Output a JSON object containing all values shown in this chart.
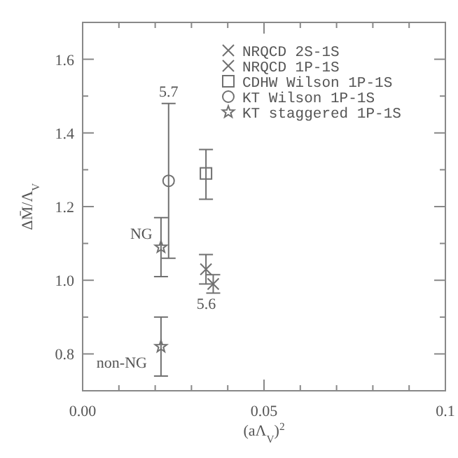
{
  "chart_data": {
    "type": "scatter",
    "xlabel": "(aΛ$_{V}$)$^{2}$",
    "ylabel": "ΔM̄/Λ$_{V}$",
    "xlim": [
      0,
      0.1
    ],
    "ylim": [
      0.7,
      1.7
    ],
    "xticks": [
      {
        "value": 0,
        "label": "0.00"
      },
      {
        "value": 0.01,
        "label": null
      },
      {
        "value": 0.02,
        "label": null
      },
      {
        "value": 0.03,
        "label": null
      },
      {
        "value": 0.04,
        "label": null
      },
      0.05,
      {
        "value": 0.06,
        "label": null
      },
      {
        "value": 0.07,
        "label": null
      },
      {
        "value": 0.08,
        "label": null
      },
      {
        "value": 0.09,
        "label": null
      },
      0.1
    ],
    "yticks": [
      {
        "value": 0.7,
        "label": null
      },
      0.8,
      {
        "value": 0.9,
        "label": null
      },
      {
        "value": 1.0,
        "label": "1.0"
      },
      {
        "value": 1.1,
        "label": null
      },
      1.2,
      {
        "value": 1.3,
        "label": null
      },
      1.4,
      {
        "value": 1.5,
        "label": null
      },
      1.6,
      {
        "value": 1.7,
        "label": null
      }
    ],
    "grid": false,
    "legend": "top right",
    "series": [
      {
        "name": "NRQCD 2S-1S",
        "color": "#707070",
        "marker": "cross",
        "x": [
          0.034
        ],
        "values": [
          1.03
        ],
        "errors": [
          [
            0.99,
            1.07
          ]
        ]
      },
      {
        "name": "NRQCD 1P-1S",
        "color": "#707070",
        "marker": "cross",
        "x": [
          0.036
        ],
        "values": [
          0.99
        ],
        "errors": [
          [
            0.965,
            1.015
          ]
        ]
      },
      {
        "name": "CDHW Wilson 1P-1S",
        "color": "#707070",
        "marker": "square",
        "x": [
          0.034
        ],
        "values": [
          1.29
        ],
        "errors": [
          [
            1.22,
            1.355
          ]
        ]
      },
      {
        "name": "KT Wilson 1P-1S",
        "color": "#707070",
        "marker": "circle",
        "x": [
          0.0237
        ],
        "values": [
          1.27
        ],
        "errors": [
          [
            1.06,
            1.48
          ]
        ]
      },
      {
        "name": "KT staggered 1P-1S",
        "color": "#707070",
        "marker": "star",
        "x": [
          0.0216,
          0.0216
        ],
        "values": [
          1.09,
          0.82
        ],
        "errors": [
          [
            1.01,
            1.17
          ],
          [
            0.74,
            0.9
          ]
        ]
      }
    ],
    "annotations": [
      {
        "text": "5.7",
        "x": 0.0237,
        "y": 1.48
      },
      {
        "text": "NG",
        "x": 0.0216,
        "y": 1.09
      },
      {
        "text": "non-NG",
        "x": 0.0216,
        "y": 0.82
      },
      {
        "text": "5.6",
        "x": 0.036,
        "y": 0.99
      }
    ]
  }
}
